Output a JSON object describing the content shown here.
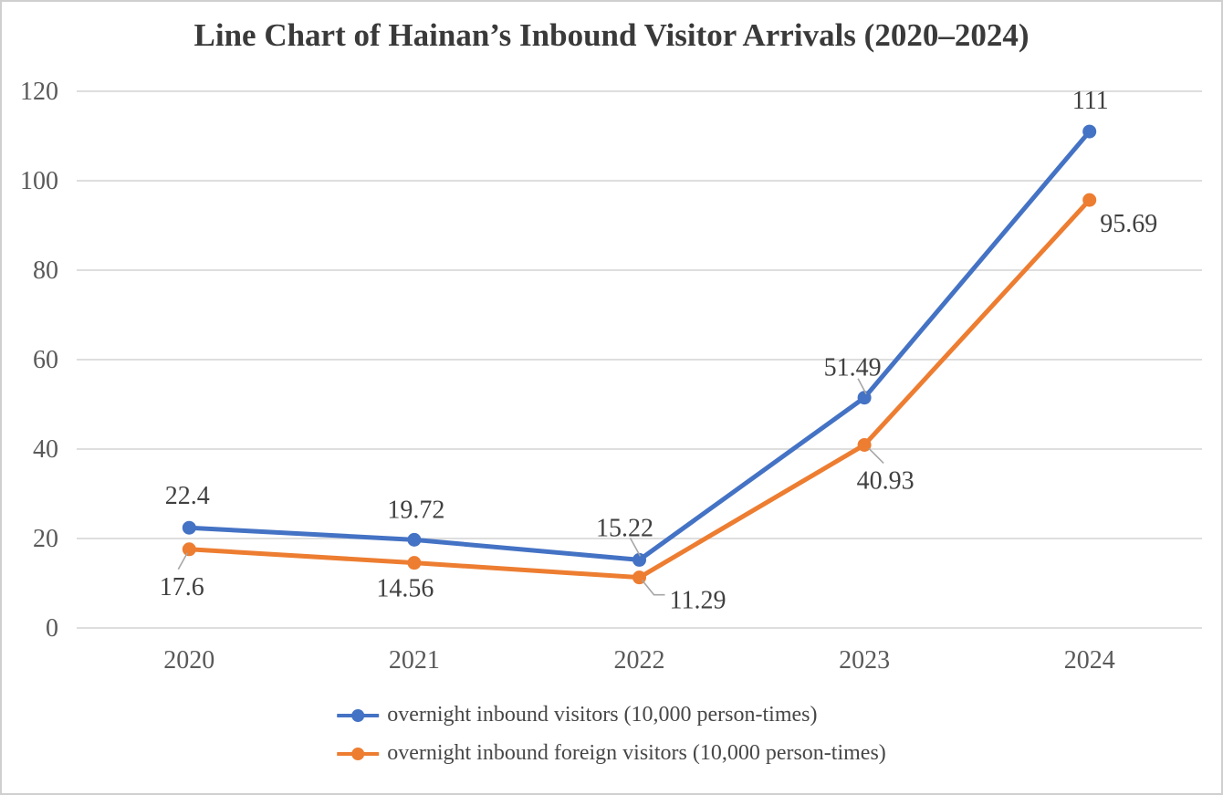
{
  "chart_data": {
    "type": "line",
    "title": "Line Chart of Hainan’s Inbound Visitor Arrivals (2020–2024)",
    "categories": [
      "2020",
      "2021",
      "2022",
      "2023",
      "2024"
    ],
    "series": [
      {
        "name": "overnight inbound visitors (10,000 person-times)",
        "color": "#4472C4",
        "values": [
          22.4,
          19.72,
          15.22,
          51.49,
          111
        ],
        "point_labels": [
          "22.4",
          "19.72",
          "15.22",
          "51.49",
          "111"
        ]
      },
      {
        "name": "overnight inbound foreign visitors (10,000 person-times)",
        "color": "#ED7D31",
        "values": [
          17.6,
          14.56,
          11.29,
          40.93,
          95.69
        ],
        "point_labels": [
          "17.6",
          "14.56",
          "11.29",
          "40.93",
          "95.69"
        ]
      }
    ],
    "y_axis": {
      "min": 0,
      "max": 120,
      "step": 20,
      "tick_labels": [
        "0",
        "20",
        "40",
        "60",
        "80",
        "100",
        "120"
      ]
    },
    "grid": true,
    "legend_position": "bottom",
    "marker": "circle"
  },
  "colors": {
    "gridline": "#D9D9D9",
    "axis_label": "#595959",
    "data_label": "#404040",
    "title": "#3a3a3a",
    "leader_line": "#A6A6A6",
    "page_border": "#cfcfcf",
    "background": "#ffffff"
  }
}
